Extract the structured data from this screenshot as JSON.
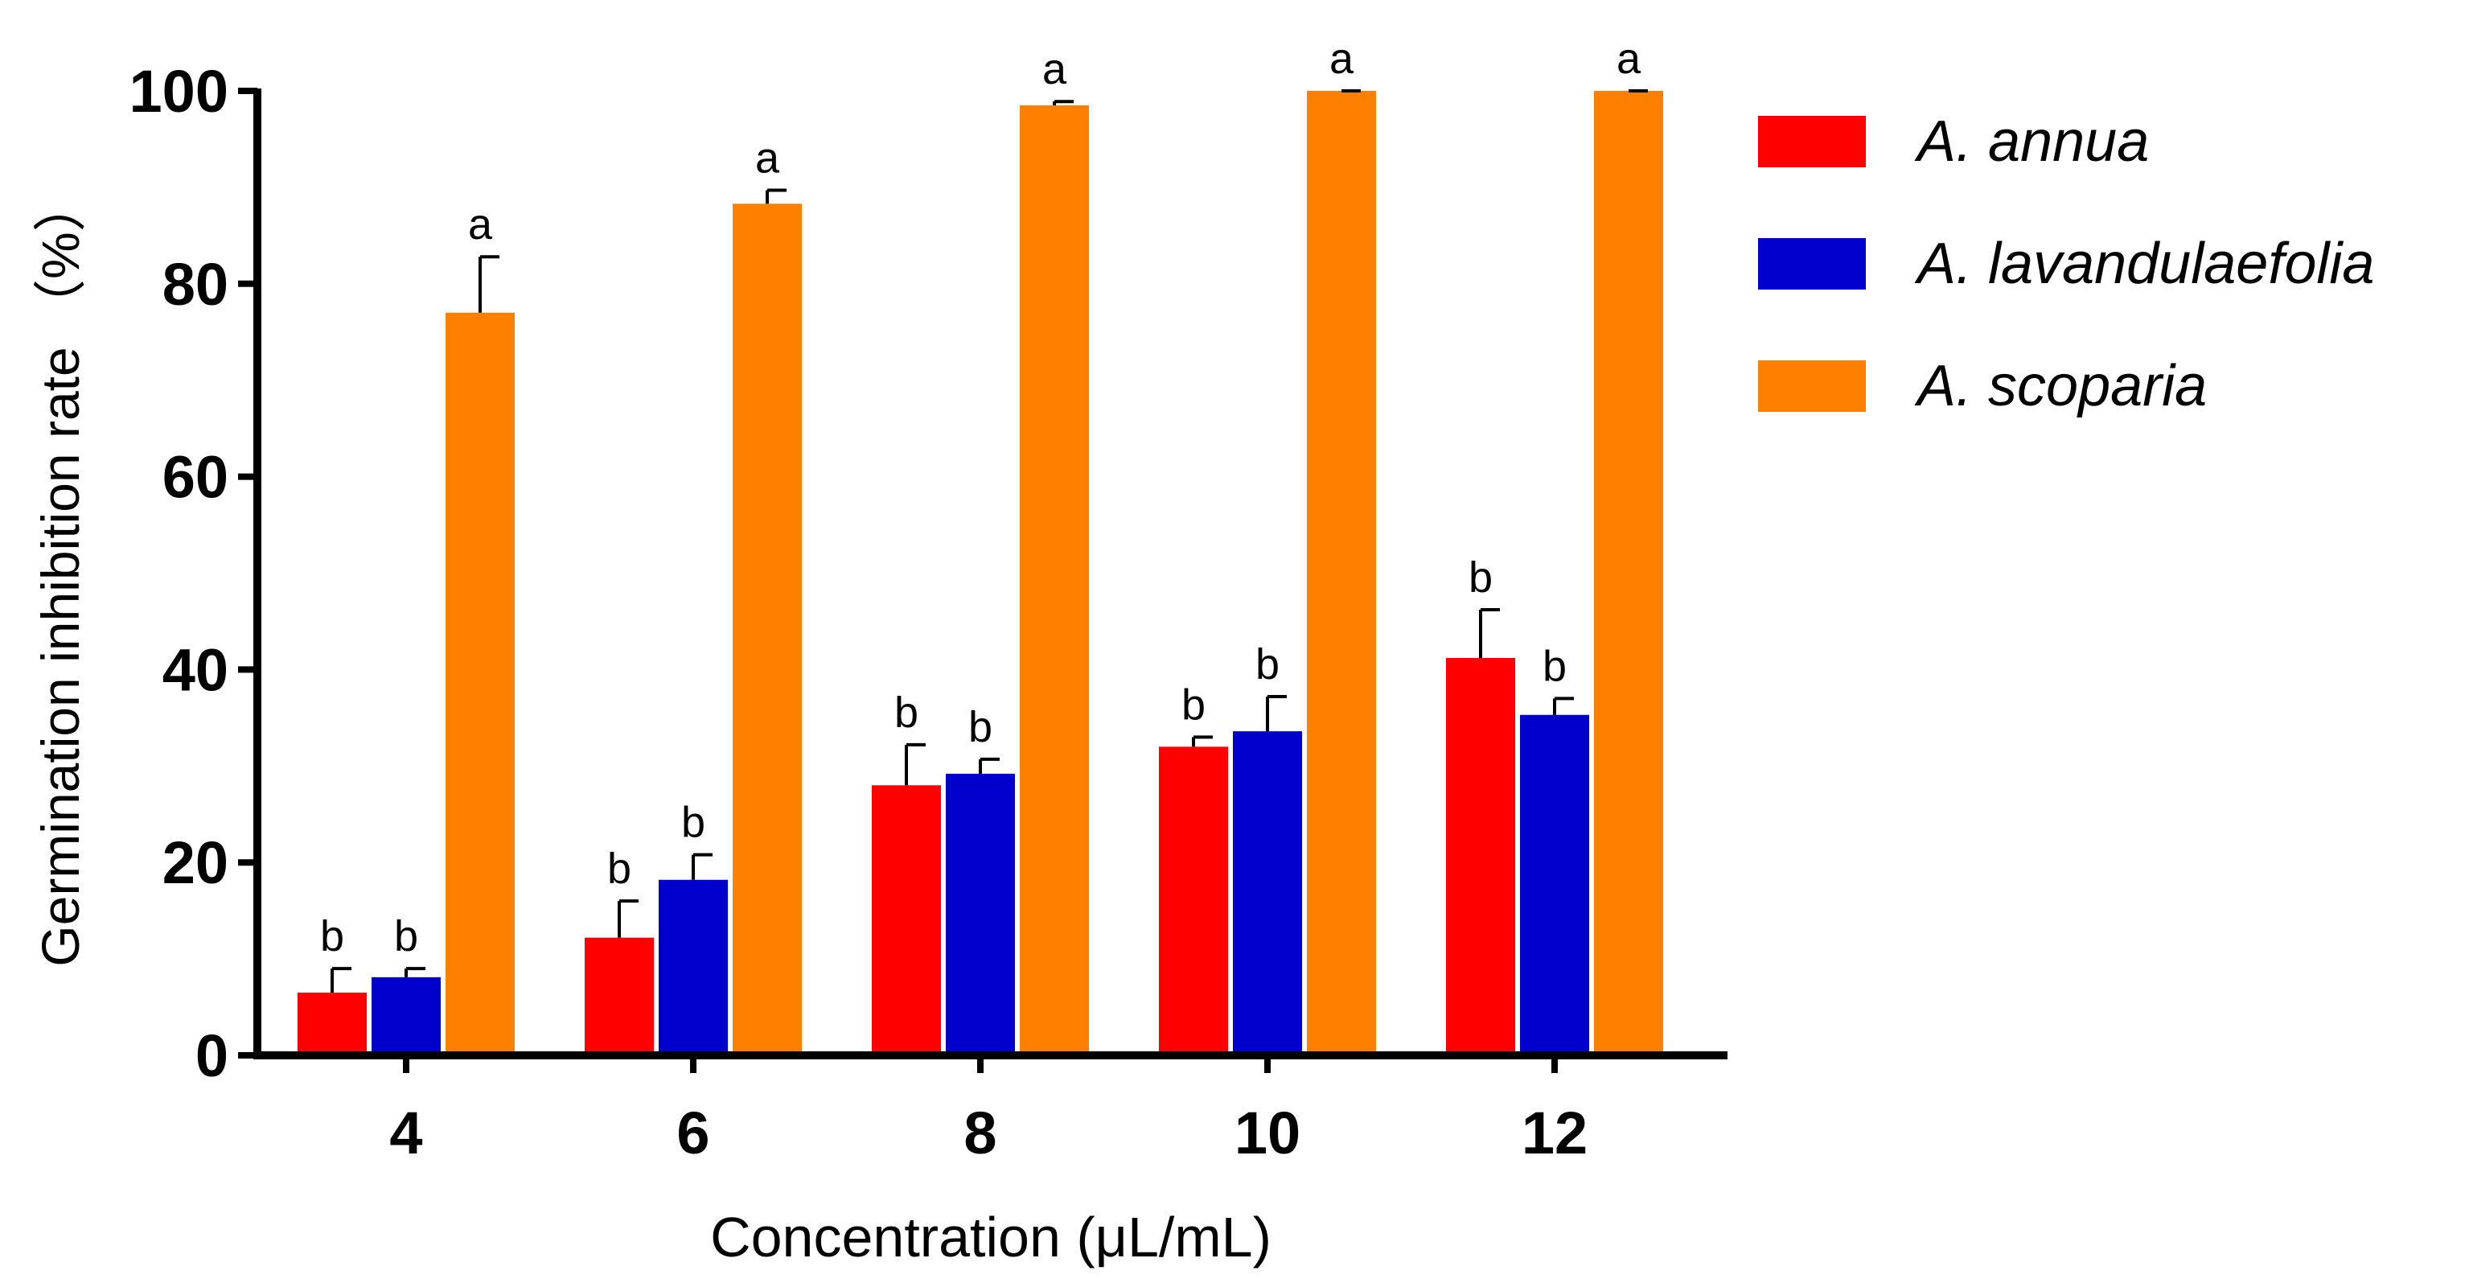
{
  "chart_data": {
    "type": "bar",
    "title": "",
    "xlabel": "Concentration (μL/mL)",
    "ylabel": "Germination inhibition rate （%）",
    "ylim": [
      0,
      100
    ],
    "yticks": [
      0,
      20,
      40,
      60,
      80,
      100
    ],
    "categories": [
      "4",
      "6",
      "8",
      "10",
      "12"
    ],
    "grid": false,
    "legend_position": "top-right, outside plot",
    "series": [
      {
        "name": "A. annua",
        "color": "#ff0000",
        "values": [
          6.5,
          12.2,
          28.0,
          32.0,
          41.2
        ],
        "errors": [
          2.5,
          3.8,
          4.2,
          1.0,
          5.0
        ],
        "letters": [
          "b",
          "b",
          "b",
          "b",
          "b"
        ]
      },
      {
        "name": "A. lavandulaefolia",
        "color": "#0000cc",
        "values": [
          8.1,
          18.2,
          29.2,
          33.6,
          35.3
        ],
        "errors": [
          0.9,
          2.6,
          1.5,
          3.6,
          1.7
        ],
        "letters": [
          "b",
          "b",
          "b",
          "b",
          "b"
        ]
      },
      {
        "name": "A. scoparia",
        "color": "#ff8000",
        "values": [
          77.0,
          88.3,
          98.5,
          100,
          100
        ],
        "errors": [
          5.8,
          1.4,
          0.4,
          0,
          0
        ],
        "letters": [
          "a",
          "a",
          "a",
          "a",
          "a"
        ]
      }
    ]
  }
}
